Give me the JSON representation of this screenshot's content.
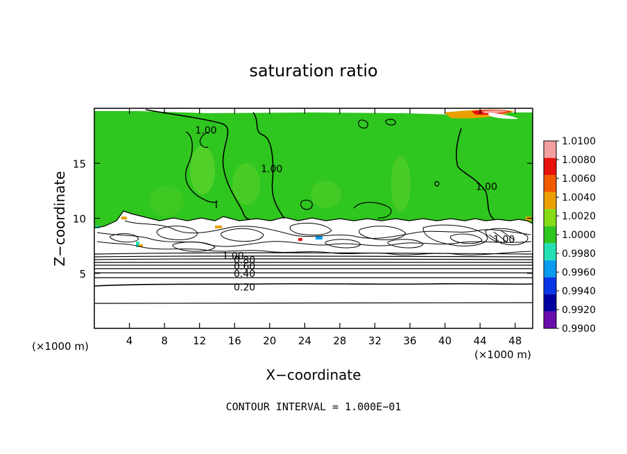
{
  "chart_data": {
    "type": "heatmap",
    "title": "saturation ratio",
    "xlabel": "X−coordinate",
    "ylabel": "Z−coordinate",
    "x_unit": "(×1000 m)",
    "z_unit": "(×1000 m)",
    "xlim": [
      0,
      50
    ],
    "zlim": [
      0,
      20
    ],
    "x_ticks": [
      4,
      8,
      12,
      16,
      20,
      24,
      28,
      32,
      36,
      40,
      44,
      48
    ],
    "z_ticks": [
      5,
      10,
      15
    ],
    "footer": "CONTOUR INTERVAL = 1.000E−01",
    "colorbar": {
      "levels": [
        "0.9900",
        "0.9920",
        "0.9940",
        "0.9960",
        "0.9980",
        "1.0000",
        "1.0020",
        "1.0040",
        "1.0060",
        "1.0080",
        "1.0100"
      ],
      "colors": [
        "#6a0dad",
        "#0000a0",
        "#0a35e8",
        "#0a9cf0",
        "#22e0b4",
        "#2fc61f",
        "#86dc16",
        "#eaa000",
        "#f25a00",
        "#e8100a",
        "#f5a0a0"
      ]
    },
    "contour_labels": [
      {
        "text": "0.20",
        "x": 15.9,
        "z": 3.75
      },
      {
        "text": "0.40",
        "x": 15.9,
        "z": 5.0
      },
      {
        "text": "0.60",
        "x": 15.9,
        "z": 5.65
      },
      {
        "text": "0.80",
        "x": 15.9,
        "z": 6.2
      },
      {
        "text": "1.00",
        "x": 14.6,
        "z": 6.6
      },
      {
        "text": "1.00",
        "x": 11.5,
        "z": 18.0
      },
      {
        "text": "1.00",
        "x": 19.0,
        "z": 14.5
      },
      {
        "text": "1.00",
        "x": 43.5,
        "z": 12.9
      },
      {
        "text": "1.00",
        "x": 45.5,
        "z": 8.1
      }
    ]
  }
}
